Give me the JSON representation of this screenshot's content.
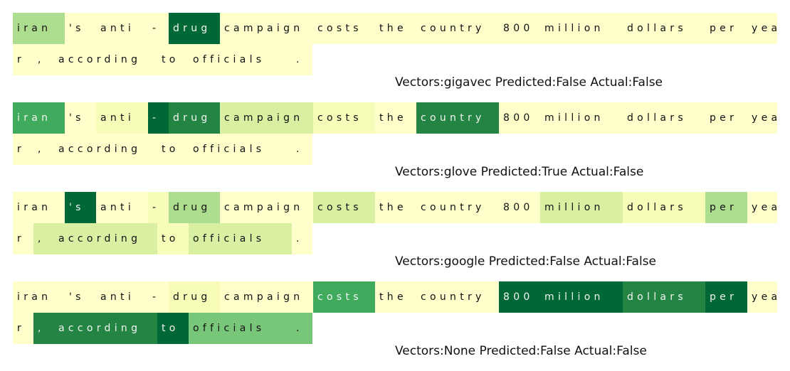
{
  "colors": {
    "c0": "#ffffcc",
    "c1": "#f7fcb9",
    "c2": "#d9f0a3",
    "c3": "#addd8e",
    "c4": "#78c679",
    "c5": "#41ab5d",
    "c6": "#238443",
    "c7": "#006837"
  },
  "panels": [
    {
      "caption": "Vectors:gigavec Predicted:False Actual:False",
      "lines": [
        [
          {
            "text": "iran",
            "level": 3,
            "w": 73
          },
          {
            "text": "'s",
            "level": 0,
            "w": 44
          },
          {
            "text": "anti",
            "level": 0,
            "w": 73
          },
          {
            "text": "-",
            "level": 0,
            "w": 29
          },
          {
            "text": "drug",
            "level": 7,
            "w": 72
          },
          {
            "text": "campaign",
            "level": 0,
            "w": 131
          },
          {
            "text": "costs",
            "level": 0,
            "w": 87
          },
          {
            "text": "the",
            "level": 0,
            "w": 58
          },
          {
            "text": "country",
            "level": 0,
            "w": 116
          },
          {
            "text": "800",
            "level": 0,
            "w": 58
          },
          {
            "text": "million",
            "level": 0,
            "w": 116
          },
          {
            "text": "dollars",
            "level": 0,
            "w": 116
          },
          {
            "text": "per",
            "level": 0,
            "w": 59
          },
          {
            "text": "yea",
            "level": 0,
            "w": 42
          }
        ],
        [
          {
            "text": "r",
            "level": 0,
            "w": 29
          },
          {
            "text": ",",
            "level": 0,
            "w": 29
          },
          {
            "text": "according",
            "level": 0,
            "w": 145
          },
          {
            "text": "to",
            "level": 0,
            "w": 44
          },
          {
            "text": "officials",
            "level": 0,
            "w": 145
          },
          {
            "text": ".",
            "level": 0,
            "w": 29
          }
        ]
      ]
    },
    {
      "caption": "Vectors:glove Predicted:True Actual:False",
      "lines": [
        [
          {
            "text": "iran",
            "level": 5,
            "w": 73
          },
          {
            "text": "'s",
            "level": 0,
            "w": 44
          },
          {
            "text": "anti",
            "level": 1,
            "w": 73
          },
          {
            "text": "-",
            "level": 7,
            "w": 29
          },
          {
            "text": "drug",
            "level": 6,
            "w": 72
          },
          {
            "text": "campaign",
            "level": 2,
            "w": 131
          },
          {
            "text": "costs",
            "level": 1,
            "w": 87
          },
          {
            "text": "the",
            "level": 0,
            "w": 58
          },
          {
            "text": "country",
            "level": 6,
            "w": 116
          },
          {
            "text": "800",
            "level": 0,
            "w": 58
          },
          {
            "text": "million",
            "level": 0,
            "w": 116
          },
          {
            "text": "dollars",
            "level": 0,
            "w": 116
          },
          {
            "text": "per",
            "level": 0,
            "w": 59
          },
          {
            "text": "yea",
            "level": 0,
            "w": 42
          }
        ],
        [
          {
            "text": "r",
            "level": 0,
            "w": 29
          },
          {
            "text": ",",
            "level": 0,
            "w": 29
          },
          {
            "text": "according",
            "level": 0,
            "w": 145
          },
          {
            "text": "to",
            "level": 0,
            "w": 44
          },
          {
            "text": "officials",
            "level": 0,
            "w": 145
          },
          {
            "text": ".",
            "level": 0,
            "w": 29
          }
        ]
      ]
    },
    {
      "caption": "Vectors:google Predicted:False Actual:False",
      "lines": [
        [
          {
            "text": "iran",
            "level": 0,
            "w": 73
          },
          {
            "text": "'s",
            "level": 7,
            "w": 44
          },
          {
            "text": "anti",
            "level": 0,
            "w": 73
          },
          {
            "text": "-",
            "level": 1,
            "w": 29
          },
          {
            "text": "drug",
            "level": 3,
            "w": 72
          },
          {
            "text": "campaign",
            "level": 0,
            "w": 131
          },
          {
            "text": "costs",
            "level": 2,
            "w": 87
          },
          {
            "text": "the",
            "level": 0,
            "w": 58
          },
          {
            "text": "country",
            "level": 0,
            "w": 116
          },
          {
            "text": "800",
            "level": 0,
            "w": 58
          },
          {
            "text": "million",
            "level": 2,
            "w": 116
          },
          {
            "text": "dollars",
            "level": 1,
            "w": 116
          },
          {
            "text": "per",
            "level": 3,
            "w": 59
          },
          {
            "text": "yea",
            "level": 0,
            "w": 42
          }
        ],
        [
          {
            "text": "r",
            "level": 0,
            "w": 29
          },
          {
            "text": ",",
            "level": 2,
            "w": 29
          },
          {
            "text": "according",
            "level": 2,
            "w": 145
          },
          {
            "text": "to",
            "level": 1,
            "w": 44
          },
          {
            "text": "officials",
            "level": 2,
            "w": 145
          },
          {
            "text": ".",
            "level": 0,
            "w": 29
          }
        ]
      ]
    },
    {
      "caption": "Vectors:None Predicted:False Actual:False",
      "lines": [
        [
          {
            "text": "iran",
            "level": 0,
            "w": 73
          },
          {
            "text": "'s",
            "level": 0,
            "w": 44
          },
          {
            "text": "anti",
            "level": 0,
            "w": 73
          },
          {
            "text": "-",
            "level": 0,
            "w": 29
          },
          {
            "text": "drug",
            "level": 1,
            "w": 72
          },
          {
            "text": "campaign",
            "level": 0,
            "w": 131
          },
          {
            "text": "costs",
            "level": 5,
            "w": 87
          },
          {
            "text": "the",
            "level": 0,
            "w": 58
          },
          {
            "text": "country",
            "level": 0,
            "w": 116
          },
          {
            "text": "800",
            "level": 7,
            "w": 58
          },
          {
            "text": "million",
            "level": 7,
            "w": 116
          },
          {
            "text": "dollars",
            "level": 6,
            "w": 116
          },
          {
            "text": "per",
            "level": 7,
            "w": 59
          },
          {
            "text": "yea",
            "level": 0,
            "w": 42
          }
        ],
        [
          {
            "text": "r",
            "level": 0,
            "w": 29
          },
          {
            "text": ",",
            "level": 6,
            "w": 29
          },
          {
            "text": "according",
            "level": 6,
            "w": 145
          },
          {
            "text": "to",
            "level": 7,
            "w": 44
          },
          {
            "text": "officials",
            "level": 4,
            "w": 145
          },
          {
            "text": ".",
            "level": 4,
            "w": 29
          }
        ]
      ]
    }
  ]
}
